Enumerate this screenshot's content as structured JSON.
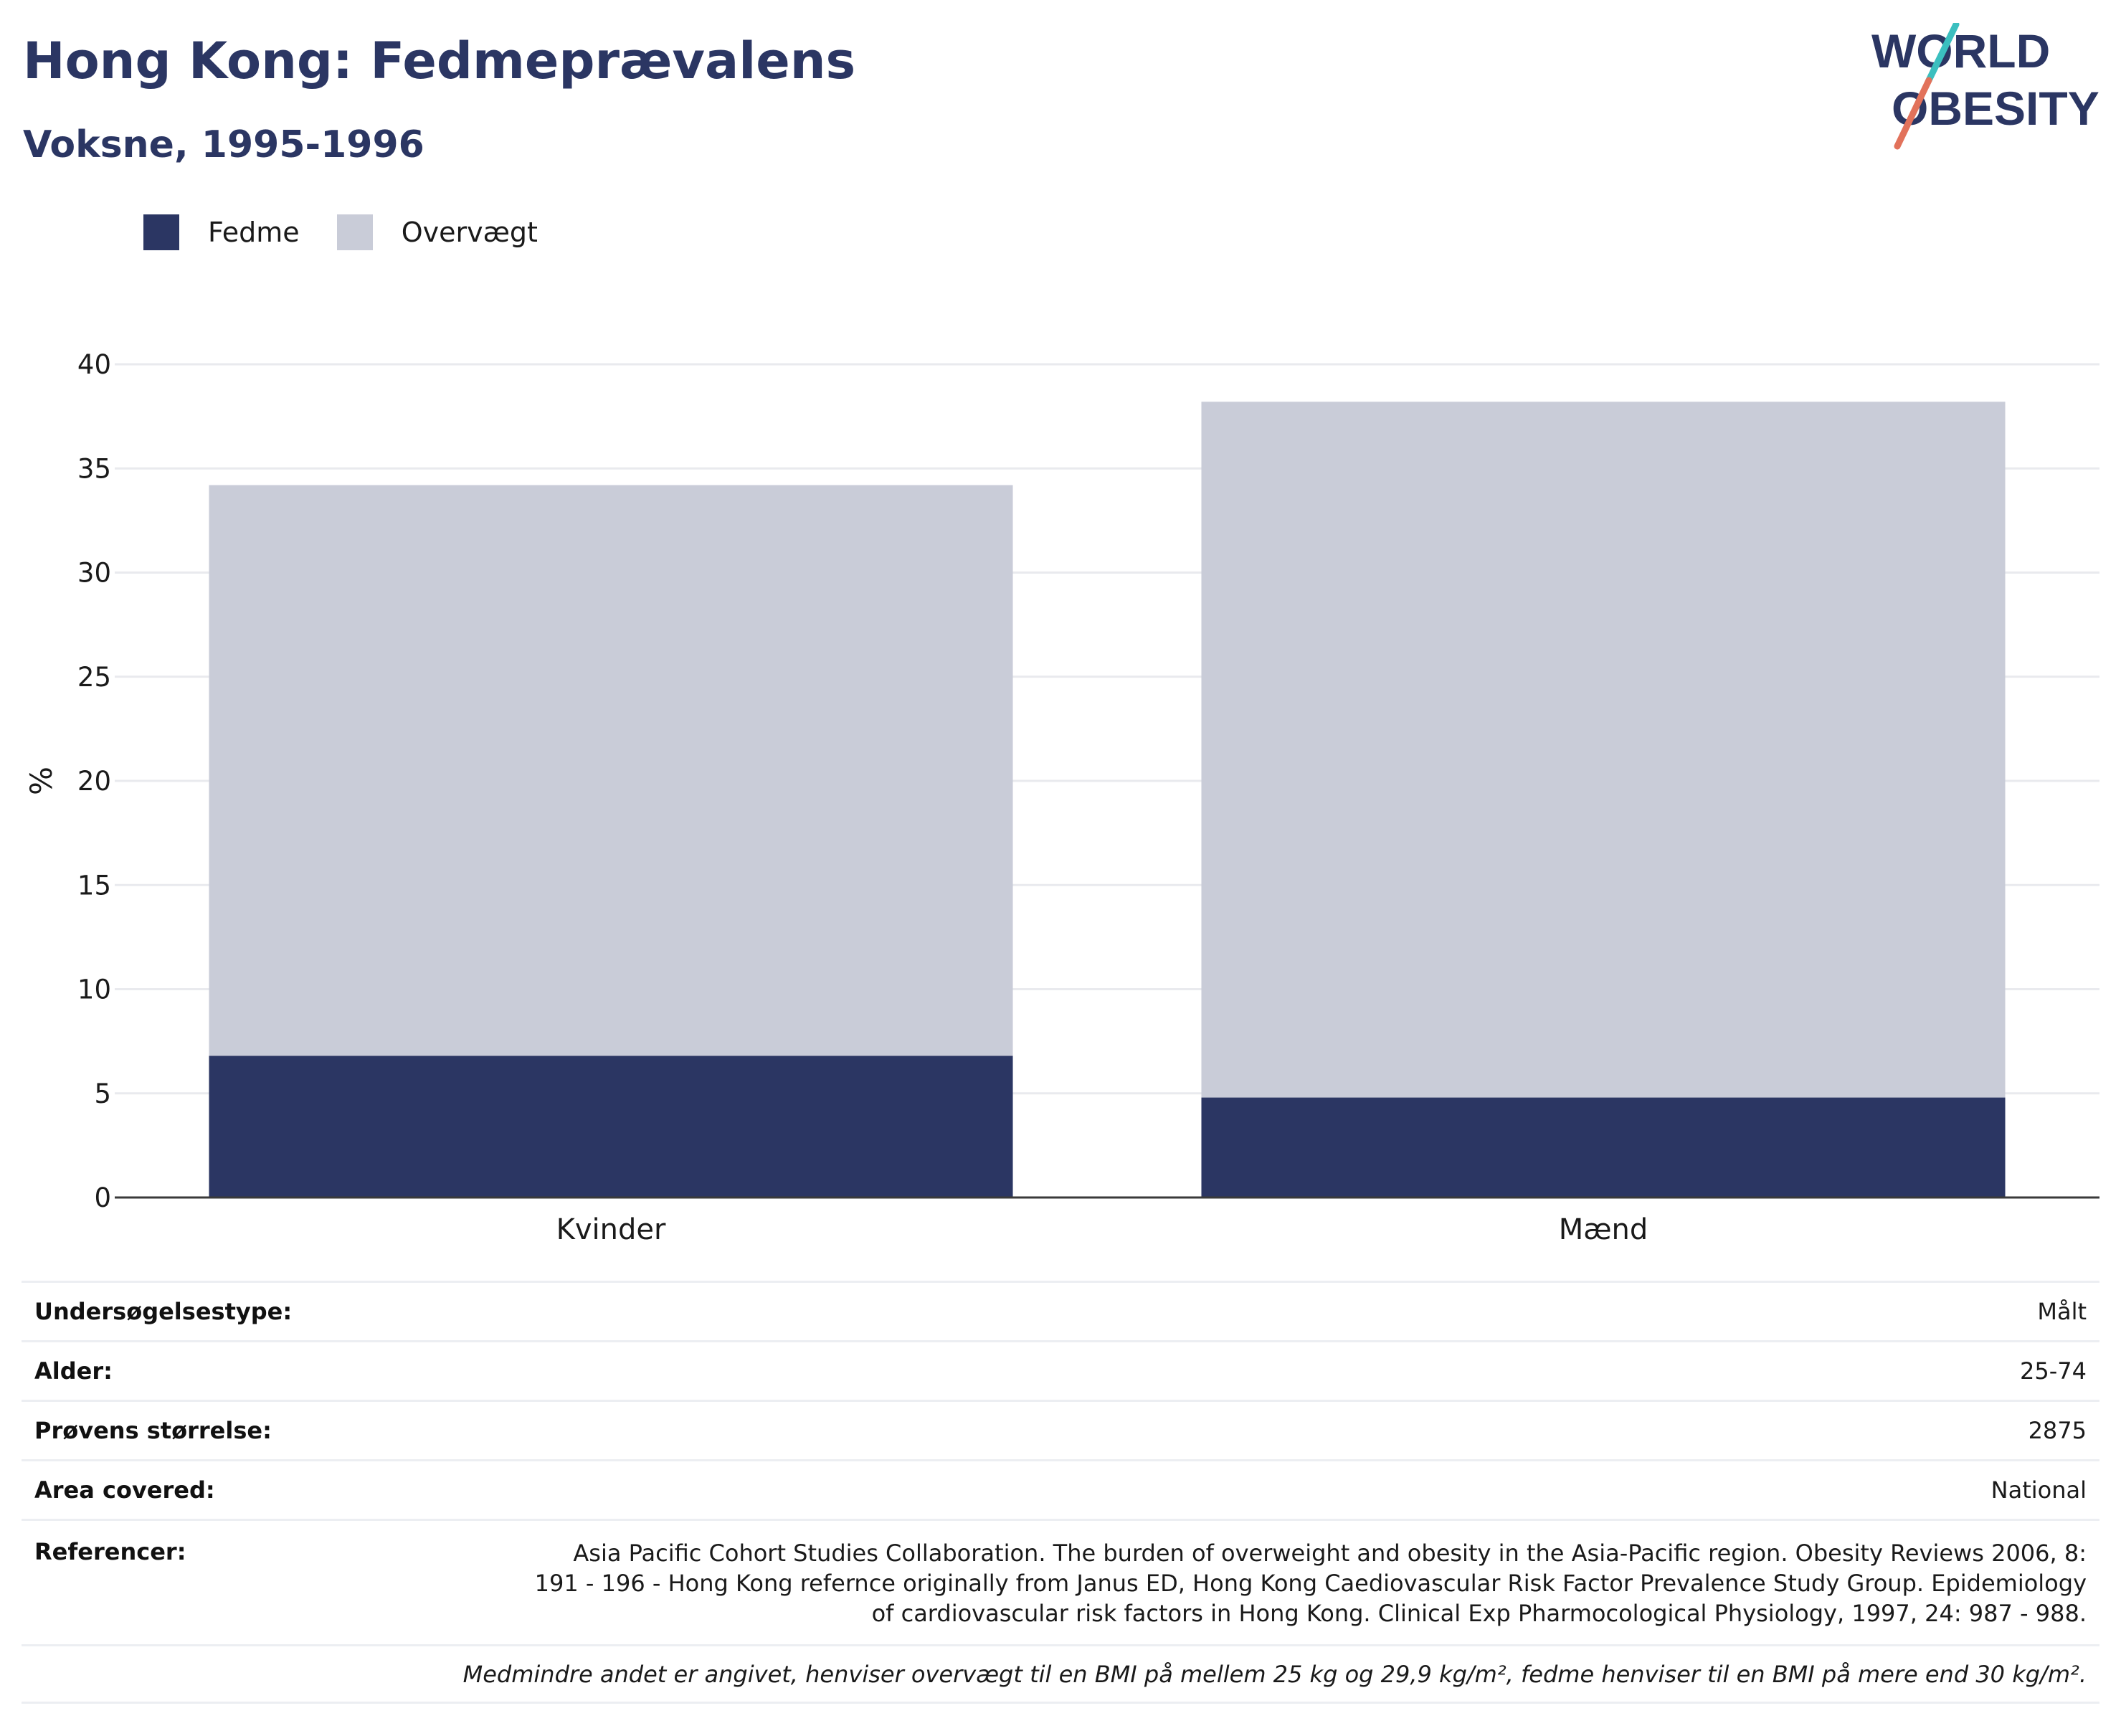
{
  "header": {
    "title": "Hong Kong: Fedmeprævalens",
    "subtitle": "Voksne, 1995-1996"
  },
  "logo": {
    "line1": "WORLD",
    "line2": "OBESITY"
  },
  "colors": {
    "fedme": "#2b3663",
    "overvaegt": "#c9ccd8",
    "accent_teal": "#3bbfbf",
    "accent_coral": "#e2725b"
  },
  "chart_data": {
    "type": "bar",
    "stacked": true,
    "categories": [
      "Kvinder",
      "Mænd"
    ],
    "series": [
      {
        "name": "Fedme",
        "values": [
          6.8,
          4.8
        ]
      },
      {
        "name": "Overvægt",
        "values": [
          27.4,
          33.4
        ]
      }
    ],
    "ylabel": "%",
    "xlabel": "",
    "ylim": [
      0,
      40
    ],
    "yticks": [
      0,
      5,
      10,
      15,
      20,
      25,
      30,
      35,
      40
    ],
    "grid": true,
    "legend_position": "top-left"
  },
  "info": {
    "rows": [
      {
        "key": "Undersøgelsestype:",
        "value": "Målt"
      },
      {
        "key": "Alder:",
        "value": "25-74"
      },
      {
        "key": "Prøvens størrelse:",
        "value": "2875"
      },
      {
        "key": "Area covered:",
        "value": "National"
      }
    ],
    "references": {
      "key": "Referencer:",
      "lines": [
        "Asia Pacific Cohort Studies Collaboration. The burden of overweight and obesity in the Asia-Pacific region. Obesity Reviews 2006, 8:",
        "191 - 196 - Hong Kong refernce originally from Janus ED, Hong Kong Caediovascular Risk Factor Prevalence Study Group. Epidemiology",
        "of cardiovascular risk factors in Hong Kong. Clinical Exp Pharmocological Physiology, 1997, 24: 987 - 988."
      ]
    },
    "note": "Medmindre andet er angivet, henviser overvægt til en BMI på mellem 25 kg og 29,9 kg/m², fedme henviser til en BMI på mere end 30 kg/m²."
  }
}
